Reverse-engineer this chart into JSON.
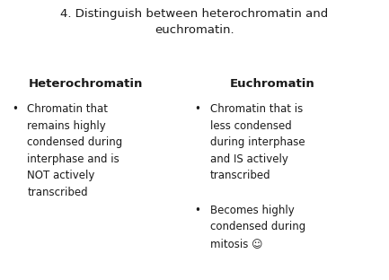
{
  "title": "4. Distinguish between heterochromatin and\neuchromatin.",
  "col1_header": "Heterochromatin",
  "col2_header": "Euchromatin",
  "col1_bullets": [
    "Chromatin that\nremains highly\ncondensed during\ninterphase and is\nNOT actively\ntranscribed"
  ],
  "col2_bullets": [
    "Chromatin that is\nless condensed\nduring interphase\nand IS actively\ntranscribed",
    "Becomes highly\ncondensed during\nmitosis ☺"
  ],
  "bg_color": "#ffffff",
  "text_color": "#1a1a1a",
  "title_fontsize": 9.5,
  "header_fontsize": 9.5,
  "body_fontsize": 8.5,
  "bullet_char": "•",
  "font_family": "Comic Sans MS"
}
